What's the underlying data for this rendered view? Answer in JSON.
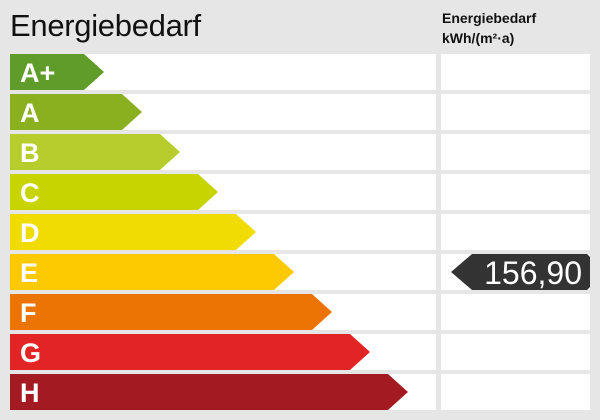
{
  "title": "Energiebedarf",
  "column_header": {
    "line1": "Energiebedarf",
    "line2": "kWh/(m²·a)"
  },
  "classes": [
    {
      "label": "A+",
      "color": "#5f9c2a"
    },
    {
      "label": "A",
      "color": "#8bb01f"
    },
    {
      "label": "B",
      "color": "#b7cd2e"
    },
    {
      "label": "C",
      "color": "#c8d400"
    },
    {
      "label": "D",
      "color": "#f0dc00"
    },
    {
      "label": "E",
      "color": "#fdc900"
    },
    {
      "label": "F",
      "color": "#ec7405"
    },
    {
      "label": "G",
      "color": "#e32424"
    },
    {
      "label": "H",
      "color": "#a31a22"
    }
  ],
  "indicator": {
    "value": "156,90",
    "class": "E",
    "color": "#333333"
  }
}
